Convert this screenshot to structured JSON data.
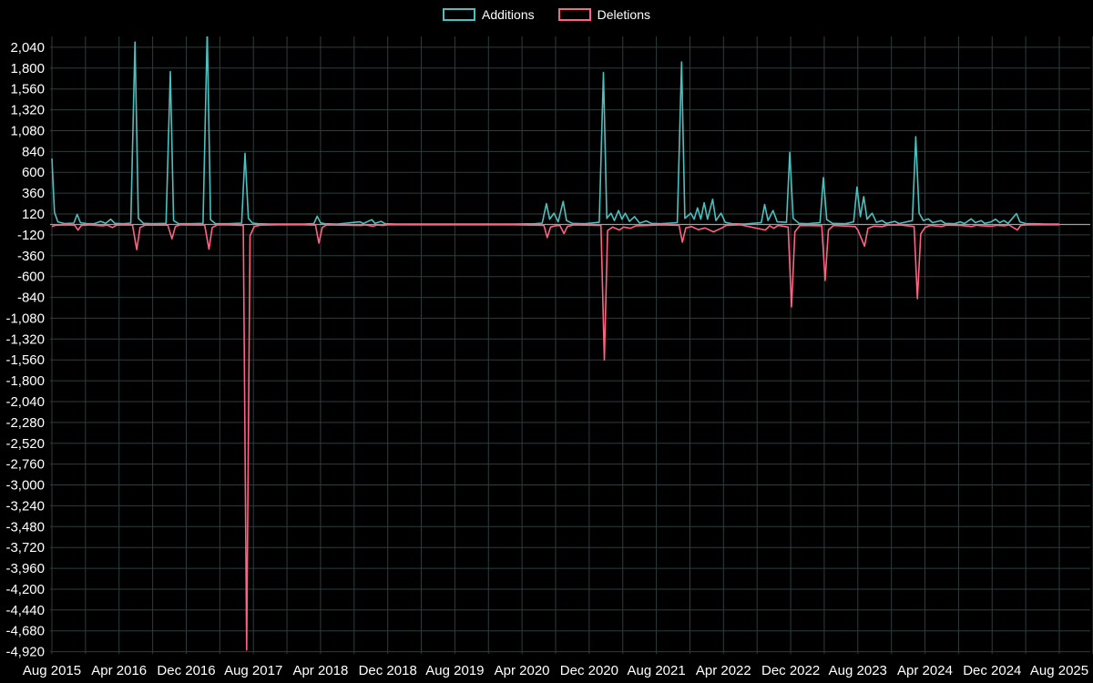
{
  "chart_data": {
    "type": "line",
    "title": "",
    "legend": {
      "position": "top",
      "entries": [
        {
          "label": "Additions",
          "color": "#4bc0c0"
        },
        {
          "label": "Deletions",
          "color": "#ff6384"
        }
      ]
    },
    "colors": {
      "background": "#000000",
      "grid": "#2e3d3d",
      "zero_line": "#9e9e9e",
      "text": "#ffffff",
      "additions": "#4bc0c0",
      "deletions": "#ff6384"
    },
    "grid": true,
    "x_axis": {
      "unit": "months since Aug 2015",
      "grid_interval_months": 4,
      "grid_max_month": 124,
      "tick_months": [
        0,
        8,
        16,
        24,
        32,
        40,
        48,
        56,
        64,
        72,
        80,
        88,
        96,
        104,
        112,
        120
      ],
      "tick_labels": [
        "Aug 2015",
        "Apr 2016",
        "Dec 2016",
        "Aug 2017",
        "Apr 2018",
        "Dec 2018",
        "Aug 2019",
        "Apr 2020",
        "Dec 2020",
        "Aug 2021",
        "Apr 2022",
        "Dec 2022",
        "Aug 2023",
        "Apr 2024",
        "Dec 2024",
        "Aug 2025"
      ]
    },
    "y_axis": {
      "max": 2165,
      "min": -4945,
      "ticks": [
        2040,
        1800,
        1560,
        1320,
        1080,
        840,
        600,
        360,
        120,
        -120,
        -360,
        -600,
        -840,
        -1080,
        -1320,
        -1560,
        -1800,
        -2040,
        -2280,
        -2520,
        -2760,
        -3000,
        -3240,
        -3480,
        -3720,
        -3960,
        -4200,
        -4440,
        -4680,
        -4920
      ]
    },
    "series": [
      {
        "name": "Additions",
        "color": "#4bc0c0",
        "points": [
          [
            0,
            760
          ],
          [
            0.3,
            140
          ],
          [
            0.7,
            30
          ],
          [
            1.5,
            10
          ],
          [
            2.6,
            15
          ],
          [
            3,
            115
          ],
          [
            3.4,
            20
          ],
          [
            4.2,
            8
          ],
          [
            5,
            8
          ],
          [
            5.8,
            35
          ],
          [
            6.4,
            12
          ],
          [
            7,
            60
          ],
          [
            7.5,
            12
          ],
          [
            8.5,
            8
          ],
          [
            9.4,
            15
          ],
          [
            9.9,
            2100
          ],
          [
            10.3,
            70
          ],
          [
            10.9,
            12
          ],
          [
            12,
            8
          ],
          [
            13.6,
            12
          ],
          [
            14.1,
            1760
          ],
          [
            14.5,
            45
          ],
          [
            15.1,
            8
          ],
          [
            16.5,
            8
          ],
          [
            18,
            12
          ],
          [
            18.5,
            2230
          ],
          [
            18.9,
            55
          ],
          [
            19.5,
            8
          ],
          [
            21,
            8
          ],
          [
            22.6,
            15
          ],
          [
            23,
            820
          ],
          [
            23.4,
            70
          ],
          [
            23.9,
            15
          ],
          [
            24.6,
            8
          ],
          [
            26,
            5
          ],
          [
            28,
            5
          ],
          [
            30,
            5
          ],
          [
            31.2,
            10
          ],
          [
            31.6,
            95
          ],
          [
            32,
            18
          ],
          [
            32.5,
            8
          ],
          [
            34,
            5
          ],
          [
            36.7,
            30
          ],
          [
            37.1,
            10
          ],
          [
            38.1,
            55
          ],
          [
            38.5,
            12
          ],
          [
            39.2,
            35
          ],
          [
            39.7,
            8
          ],
          [
            41,
            5
          ],
          [
            44,
            5
          ],
          [
            48,
            5
          ],
          [
            52,
            5
          ],
          [
            55,
            5
          ],
          [
            57.5,
            8
          ],
          [
            58.4,
            15
          ],
          [
            58.9,
            240
          ],
          [
            59.3,
            60
          ],
          [
            59.8,
            130
          ],
          [
            60.3,
            30
          ],
          [
            60.9,
            265
          ],
          [
            61.3,
            45
          ],
          [
            62,
            12
          ],
          [
            63.5,
            8
          ],
          [
            65.2,
            25
          ],
          [
            65.7,
            1750
          ],
          [
            66.1,
            70
          ],
          [
            66.6,
            130
          ],
          [
            67,
            45
          ],
          [
            67.5,
            160
          ],
          [
            67.9,
            60
          ],
          [
            68.3,
            130
          ],
          [
            68.8,
            35
          ],
          [
            69.4,
            90
          ],
          [
            70,
            15
          ],
          [
            70.8,
            40
          ],
          [
            71.4,
            12
          ],
          [
            72.5,
            8
          ],
          [
            74.5,
            20
          ],
          [
            75,
            1870
          ],
          [
            75.4,
            70
          ],
          [
            76.1,
            130
          ],
          [
            76.5,
            60
          ],
          [
            76.9,
            190
          ],
          [
            77.3,
            60
          ],
          [
            77.7,
            250
          ],
          [
            78.1,
            60
          ],
          [
            78.7,
            290
          ],
          [
            79.1,
            45
          ],
          [
            79.7,
            130
          ],
          [
            80.2,
            25
          ],
          [
            81,
            8
          ],
          [
            82.5,
            5
          ],
          [
            84.5,
            20
          ],
          [
            84.9,
            230
          ],
          [
            85.3,
            45
          ],
          [
            85.9,
            160
          ],
          [
            86.4,
            30
          ],
          [
            87.5,
            25
          ],
          [
            87.9,
            830
          ],
          [
            88.3,
            70
          ],
          [
            89,
            12
          ],
          [
            90,
            8
          ],
          [
            91.5,
            20
          ],
          [
            91.9,
            540
          ],
          [
            92.3,
            55
          ],
          [
            93,
            12
          ],
          [
            94.5,
            8
          ],
          [
            95.5,
            30
          ],
          [
            95.9,
            430
          ],
          [
            96.3,
            90
          ],
          [
            96.7,
            320
          ],
          [
            97.1,
            60
          ],
          [
            97.7,
            130
          ],
          [
            98.2,
            25
          ],
          [
            98.9,
            45
          ],
          [
            99.4,
            12
          ],
          [
            100.4,
            35
          ],
          [
            100.9,
            10
          ],
          [
            102.5,
            45
          ],
          [
            102.9,
            1010
          ],
          [
            103.3,
            130
          ],
          [
            103.8,
            45
          ],
          [
            104.4,
            65
          ],
          [
            104.9,
            20
          ],
          [
            105.9,
            45
          ],
          [
            106.4,
            12
          ],
          [
            107.5,
            8
          ],
          [
            108.2,
            30
          ],
          [
            108.7,
            10
          ],
          [
            109.5,
            65
          ],
          [
            110,
            20
          ],
          [
            110.7,
            45
          ],
          [
            111.1,
            12
          ],
          [
            111.9,
            30
          ],
          [
            112.4,
            60
          ],
          [
            112.9,
            20
          ],
          [
            113.4,
            45
          ],
          [
            113.9,
            12
          ],
          [
            114.9,
            125
          ],
          [
            115.3,
            30
          ],
          [
            116,
            10
          ],
          [
            117,
            8
          ],
          [
            118.5,
            5
          ],
          [
            120,
            5
          ]
        ]
      },
      {
        "name": "Deletions",
        "color": "#ff6384",
        "points": [
          [
            0,
            -25
          ],
          [
            0.4,
            -10
          ],
          [
            1.5,
            -5
          ],
          [
            2.7,
            -8
          ],
          [
            3.1,
            -65
          ],
          [
            3.5,
            -12
          ],
          [
            4.5,
            -5
          ],
          [
            6,
            -15
          ],
          [
            6.6,
            -8
          ],
          [
            7.2,
            -35
          ],
          [
            7.7,
            -8
          ],
          [
            9,
            -5
          ],
          [
            9.6,
            -8
          ],
          [
            10.1,
            -290
          ],
          [
            10.5,
            -35
          ],
          [
            11.1,
            -8
          ],
          [
            13.8,
            -8
          ],
          [
            14.3,
            -165
          ],
          [
            14.7,
            -25
          ],
          [
            15.3,
            -5
          ],
          [
            18.2,
            -8
          ],
          [
            18.7,
            -285
          ],
          [
            19.1,
            -35
          ],
          [
            19.7,
            -5
          ],
          [
            21,
            -5
          ],
          [
            22.8,
            -12
          ],
          [
            23.2,
            -4900
          ],
          [
            23.6,
            -130
          ],
          [
            24.1,
            -25
          ],
          [
            24.8,
            -8
          ],
          [
            27,
            -4
          ],
          [
            30,
            -4
          ],
          [
            31.4,
            -8
          ],
          [
            31.8,
            -215
          ],
          [
            32.2,
            -35
          ],
          [
            32.7,
            -6
          ],
          [
            36.9,
            -12
          ],
          [
            37.3,
            -5
          ],
          [
            38.3,
            -20
          ],
          [
            38.7,
            -6
          ],
          [
            39.4,
            -12
          ],
          [
            40,
            -4
          ],
          [
            45,
            -4
          ],
          [
            50,
            -4
          ],
          [
            55,
            -4
          ],
          [
            58.6,
            -10
          ],
          [
            59,
            -150
          ],
          [
            59.4,
            -30
          ],
          [
            60,
            -15
          ],
          [
            60.5,
            -10
          ],
          [
            61,
            -105
          ],
          [
            61.4,
            -25
          ],
          [
            62.1,
            -6
          ],
          [
            65.4,
            -12
          ],
          [
            65.8,
            -1560
          ],
          [
            66.2,
            -70
          ],
          [
            66.8,
            -30
          ],
          [
            67.6,
            -65
          ],
          [
            68.1,
            -30
          ],
          [
            68.9,
            -45
          ],
          [
            69.6,
            -15
          ],
          [
            70.9,
            -12
          ],
          [
            72.6,
            -5
          ],
          [
            74.7,
            -10
          ],
          [
            75.1,
            -205
          ],
          [
            75.5,
            -40
          ],
          [
            76.2,
            -25
          ],
          [
            77,
            -60
          ],
          [
            77.8,
            -40
          ],
          [
            78.8,
            -85
          ],
          [
            79.8,
            -40
          ],
          [
            80.3,
            -12
          ],
          [
            82,
            -4
          ],
          [
            85,
            -65
          ],
          [
            85.5,
            -15
          ],
          [
            86,
            -45
          ],
          [
            86.5,
            -12
          ],
          [
            87.7,
            -30
          ],
          [
            88.1,
            -950
          ],
          [
            88.5,
            -85
          ],
          [
            89.1,
            -12
          ],
          [
            91.7,
            -15
          ],
          [
            92.1,
            -645
          ],
          [
            92.5,
            -65
          ],
          [
            93.1,
            -12
          ],
          [
            95.7,
            -25
          ],
          [
            96,
            -65
          ],
          [
            96.8,
            -250
          ],
          [
            97.2,
            -45
          ],
          [
            97.9,
            -20
          ],
          [
            98.9,
            -25
          ],
          [
            99.5,
            -8
          ],
          [
            101,
            -5
          ],
          [
            102.7,
            -25
          ],
          [
            103.1,
            -855
          ],
          [
            103.5,
            -110
          ],
          [
            104,
            -35
          ],
          [
            104.6,
            -12
          ],
          [
            106,
            -25
          ],
          [
            106.5,
            -8
          ],
          [
            108.3,
            -12
          ],
          [
            109.6,
            -25
          ],
          [
            110.1,
            -8
          ],
          [
            110.8,
            -15
          ],
          [
            112,
            -20
          ],
          [
            112.6,
            -10
          ],
          [
            113.5,
            -15
          ],
          [
            114,
            -6
          ],
          [
            115,
            -65
          ],
          [
            115.4,
            -12
          ],
          [
            116.1,
            -6
          ],
          [
            118,
            -4
          ],
          [
            120,
            -4
          ]
        ]
      }
    ]
  }
}
